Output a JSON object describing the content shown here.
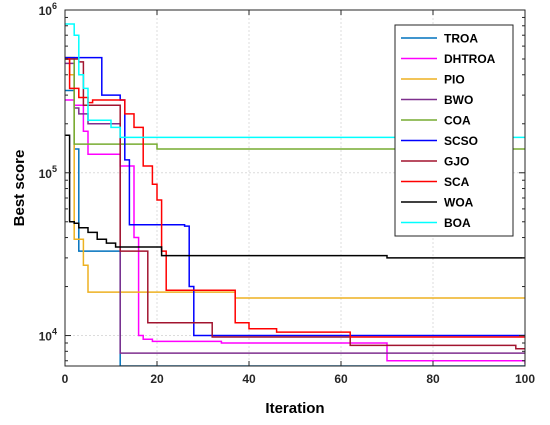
{
  "chart_data": {
    "type": "line",
    "title": "",
    "xlabel": "Iteration",
    "ylabel": "Best score",
    "xlim": [
      0,
      100
    ],
    "ylim": [
      6500,
      1000000
    ],
    "y_scale": "log",
    "grid": true,
    "legend_position": "top-right",
    "x_ticks": [
      0,
      20,
      40,
      60,
      80,
      100
    ],
    "y_ticks": [
      {
        "value": 10000,
        "base": "10",
        "exp": "4"
      },
      {
        "value": 100000,
        "base": "10",
        "exp": "5"
      },
      {
        "value": 1000000,
        "base": "10",
        "exp": "6"
      }
    ],
    "series": [
      {
        "name": "TROA",
        "color": "#0072BD",
        "points": [
          [
            0,
            320000
          ],
          [
            1,
            320000
          ],
          [
            2,
            140000
          ],
          [
            3,
            33000
          ],
          [
            4,
            33000
          ],
          [
            11,
            33000
          ],
          [
            12,
            6500
          ],
          [
            100,
            6500
          ]
        ]
      },
      {
        "name": "DHTROA",
        "color": "#FF00FF",
        "points": [
          [
            0,
            280000
          ],
          [
            1,
            280000
          ],
          [
            2,
            260000
          ],
          [
            4,
            180000
          ],
          [
            5,
            130000
          ],
          [
            11,
            130000
          ],
          [
            12,
            110000
          ],
          [
            15,
            40000
          ],
          [
            16,
            10000
          ],
          [
            17,
            9500
          ],
          [
            19,
            9200
          ],
          [
            30,
            9200
          ],
          [
            34,
            9000
          ],
          [
            65,
            9000
          ],
          [
            70,
            7000
          ],
          [
            98,
            7000
          ],
          [
            100,
            6700
          ]
        ]
      },
      {
        "name": "PIO",
        "color": "#EDB120",
        "points": [
          [
            0,
            510000
          ],
          [
            1,
            400000
          ],
          [
            2,
            39000
          ],
          [
            3,
            39000
          ],
          [
            4,
            27000
          ],
          [
            5,
            18500
          ],
          [
            36,
            18500
          ],
          [
            37,
            17000
          ],
          [
            100,
            17000
          ]
        ]
      },
      {
        "name": "BWO",
        "color": "#7E2F8E",
        "points": [
          [
            0,
            470000
          ],
          [
            1,
            470000
          ],
          [
            2,
            250000
          ],
          [
            3,
            230000
          ],
          [
            5,
            200000
          ],
          [
            11,
            200000
          ],
          [
            12,
            7800
          ],
          [
            100,
            7800
          ]
        ]
      },
      {
        "name": "COA",
        "color": "#77AC30",
        "points": [
          [
            0,
            510000
          ],
          [
            1,
            510000
          ],
          [
            2,
            150000
          ],
          [
            19,
            150000
          ],
          [
            20,
            140000
          ],
          [
            100,
            140000
          ]
        ]
      },
      {
        "name": "SCSO",
        "color": "#0000FF",
        "points": [
          [
            0,
            510000
          ],
          [
            2,
            510000
          ],
          [
            3,
            510000
          ],
          [
            7,
            510000
          ],
          [
            8,
            300000
          ],
          [
            12,
            280000
          ],
          [
            13,
            120000
          ],
          [
            14,
            48000
          ],
          [
            25,
            48000
          ],
          [
            26,
            47000
          ],
          [
            27,
            20000
          ],
          [
            28,
            10000
          ],
          [
            100,
            10000
          ]
        ]
      },
      {
        "name": "GJO",
        "color": "#A2142F",
        "points": [
          [
            0,
            500000
          ],
          [
            2,
            500000
          ],
          [
            3,
            480000
          ],
          [
            4,
            260000
          ],
          [
            11,
            260000
          ],
          [
            12,
            33000
          ],
          [
            17,
            33000
          ],
          [
            18,
            12000
          ],
          [
            25,
            12000
          ],
          [
            28,
            12000
          ],
          [
            32,
            9800
          ],
          [
            60,
            9800
          ],
          [
            62,
            8700
          ],
          [
            95,
            8700
          ],
          [
            98,
            8300
          ],
          [
            100,
            8300
          ]
        ]
      },
      {
        "name": "SCA",
        "color": "#FF0000",
        "points": [
          [
            0,
            500000
          ],
          [
            1,
            330000
          ],
          [
            3,
            290000
          ],
          [
            5,
            270000
          ],
          [
            6,
            280000
          ],
          [
            12,
            280000
          ],
          [
            13,
            230000
          ],
          [
            15,
            190000
          ],
          [
            17,
            110000
          ],
          [
            19,
            85000
          ],
          [
            20,
            68000
          ],
          [
            21,
            33000
          ],
          [
            22,
            19000
          ],
          [
            36,
            19000
          ],
          [
            37,
            12000
          ],
          [
            40,
            11000
          ],
          [
            45,
            11000
          ],
          [
            46,
            10500
          ],
          [
            61,
            10500
          ],
          [
            62,
            9800
          ],
          [
            100,
            9800
          ]
        ]
      },
      {
        "name": "WOA",
        "color": "#000000",
        "points": [
          [
            0,
            170000
          ],
          [
            1,
            50000
          ],
          [
            2,
            49000
          ],
          [
            3,
            46000
          ],
          [
            5,
            43000
          ],
          [
            7,
            39000
          ],
          [
            9,
            37000
          ],
          [
            11,
            35000
          ],
          [
            18,
            35000
          ],
          [
            21,
            31000
          ],
          [
            40,
            31000
          ],
          [
            70,
            30000
          ],
          [
            100,
            30000
          ]
        ]
      },
      {
        "name": "BOA",
        "color": "#00FFFF",
        "points": [
          [
            0,
            820000
          ],
          [
            1,
            820000
          ],
          [
            2,
            700000
          ],
          [
            3,
            400000
          ],
          [
            4,
            330000
          ],
          [
            5,
            210000
          ],
          [
            10,
            190000
          ],
          [
            12,
            165000
          ],
          [
            100,
            165000
          ]
        ]
      }
    ]
  }
}
